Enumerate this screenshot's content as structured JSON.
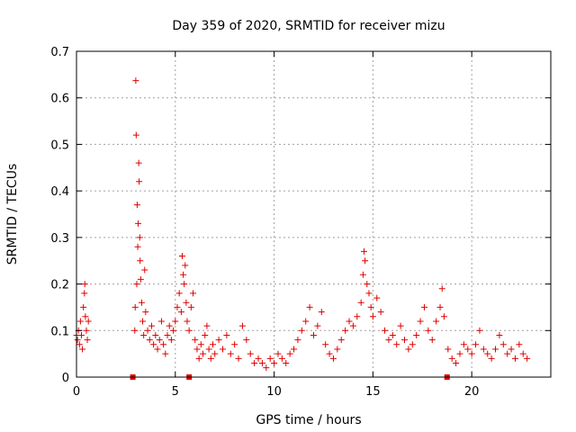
{
  "chart_data": {
    "type": "scatter",
    "title": "Day 359 of 2020, SRMTID for receiver mizu",
    "xlabel": "GPS time / hours",
    "ylabel": "SRMTID / TECUs",
    "xlim": [
      0,
      24
    ],
    "ylim": [
      0,
      0.7
    ],
    "xticks": [
      0,
      5,
      10,
      15,
      20
    ],
    "xtick_labels": [
      "0",
      "5",
      "10",
      "15",
      "20"
    ],
    "yticks": [
      0,
      0.1,
      0.2,
      0.3,
      0.4,
      0.5,
      0.6,
      0.7
    ],
    "ytick_labels": [
      "0",
      "0.1",
      "0.2",
      "0.3",
      "0.4",
      "0.5",
      "0.6",
      "0.7"
    ],
    "grid": true,
    "marker": "+",
    "colors": {
      "series": "#e00000",
      "grid": "#a0a0a0",
      "axis": "#000000"
    },
    "gap_markers_x": [
      2.85,
      5.7,
      18.75
    ],
    "series": [
      {
        "name": "SRMTID",
        "points": [
          [
            0.0,
            0.09
          ],
          [
            0.05,
            0.08
          ],
          [
            0.1,
            0.1
          ],
          [
            0.15,
            0.07
          ],
          [
            0.2,
            0.12
          ],
          [
            0.25,
            0.09
          ],
          [
            0.3,
            0.06
          ],
          [
            0.35,
            0.15
          ],
          [
            0.4,
            0.18
          ],
          [
            0.42,
            0.2
          ],
          [
            0.45,
            0.13
          ],
          [
            0.5,
            0.1
          ],
          [
            0.55,
            0.08
          ],
          [
            0.6,
            0.12
          ],
          [
            2.95,
            0.1
          ],
          [
            2.97,
            0.15
          ],
          [
            3.0,
            0.637
          ],
          [
            3.02,
            0.52
          ],
          [
            3.05,
            0.2
          ],
          [
            3.07,
            0.37
          ],
          [
            3.1,
            0.28
          ],
          [
            3.12,
            0.33
          ],
          [
            3.15,
            0.46
          ],
          [
            3.17,
            0.42
          ],
          [
            3.2,
            0.3
          ],
          [
            3.22,
            0.25
          ],
          [
            3.25,
            0.21
          ],
          [
            3.3,
            0.16
          ],
          [
            3.35,
            0.12
          ],
          [
            3.4,
            0.09
          ],
          [
            3.45,
            0.23
          ],
          [
            3.5,
            0.14
          ],
          [
            3.6,
            0.1
          ],
          [
            3.7,
            0.08
          ],
          [
            3.8,
            0.11
          ],
          [
            3.9,
            0.07
          ],
          [
            4.0,
            0.09
          ],
          [
            4.1,
            0.06
          ],
          [
            4.2,
            0.08
          ],
          [
            4.3,
            0.12
          ],
          [
            4.4,
            0.07
          ],
          [
            4.5,
            0.05
          ],
          [
            4.6,
            0.09
          ],
          [
            4.7,
            0.11
          ],
          [
            4.8,
            0.08
          ],
          [
            4.9,
            0.1
          ],
          [
            5.0,
            0.12
          ],
          [
            5.1,
            0.15
          ],
          [
            5.2,
            0.18
          ],
          [
            5.3,
            0.14
          ],
          [
            5.35,
            0.26
          ],
          [
            5.4,
            0.22
          ],
          [
            5.45,
            0.2
          ],
          [
            5.5,
            0.24
          ],
          [
            5.55,
            0.16
          ],
          [
            5.6,
            0.12
          ],
          [
            5.7,
            0.1
          ],
          [
            5.8,
            0.15
          ],
          [
            5.9,
            0.18
          ],
          [
            6.0,
            0.08
          ],
          [
            6.1,
            0.06
          ],
          [
            6.2,
            0.04
          ],
          [
            6.3,
            0.07
          ],
          [
            6.4,
            0.05
          ],
          [
            6.5,
            0.09
          ],
          [
            6.6,
            0.11
          ],
          [
            6.7,
            0.06
          ],
          [
            6.8,
            0.04
          ],
          [
            6.9,
            0.07
          ],
          [
            7.0,
            0.05
          ],
          [
            7.2,
            0.08
          ],
          [
            7.4,
            0.06
          ],
          [
            7.6,
            0.09
          ],
          [
            7.8,
            0.05
          ],
          [
            8.0,
            0.07
          ],
          [
            8.2,
            0.04
          ],
          [
            8.4,
            0.11
          ],
          [
            8.6,
            0.08
          ],
          [
            8.8,
            0.05
          ],
          [
            9.0,
            0.03
          ],
          [
            9.2,
            0.04
          ],
          [
            9.4,
            0.03
          ],
          [
            9.6,
            0.02
          ],
          [
            9.8,
            0.04
          ],
          [
            10.0,
            0.03
          ],
          [
            10.2,
            0.05
          ],
          [
            10.4,
            0.04
          ],
          [
            10.6,
            0.03
          ],
          [
            10.8,
            0.05
          ],
          [
            11.0,
            0.06
          ],
          [
            11.2,
            0.08
          ],
          [
            11.4,
            0.1
          ],
          [
            11.6,
            0.12
          ],
          [
            11.8,
            0.15
          ],
          [
            12.0,
            0.09
          ],
          [
            12.2,
            0.11
          ],
          [
            12.4,
            0.14
          ],
          [
            12.6,
            0.07
          ],
          [
            12.8,
            0.05
          ],
          [
            13.0,
            0.04
          ],
          [
            13.2,
            0.06
          ],
          [
            13.4,
            0.08
          ],
          [
            13.6,
            0.1
          ],
          [
            13.8,
            0.12
          ],
          [
            14.0,
            0.11
          ],
          [
            14.2,
            0.13
          ],
          [
            14.4,
            0.16
          ],
          [
            14.5,
            0.22
          ],
          [
            14.55,
            0.27
          ],
          [
            14.6,
            0.25
          ],
          [
            14.7,
            0.2
          ],
          [
            14.8,
            0.18
          ],
          [
            14.9,
            0.15
          ],
          [
            15.0,
            0.13
          ],
          [
            15.2,
            0.17
          ],
          [
            15.4,
            0.14
          ],
          [
            15.6,
            0.1
          ],
          [
            15.8,
            0.08
          ],
          [
            16.0,
            0.09
          ],
          [
            16.2,
            0.07
          ],
          [
            16.4,
            0.11
          ],
          [
            16.6,
            0.08
          ],
          [
            16.8,
            0.06
          ],
          [
            17.0,
            0.07
          ],
          [
            17.2,
            0.09
          ],
          [
            17.4,
            0.12
          ],
          [
            17.6,
            0.15
          ],
          [
            17.8,
            0.1
          ],
          [
            18.0,
            0.08
          ],
          [
            18.2,
            0.12
          ],
          [
            18.4,
            0.15
          ],
          [
            18.5,
            0.19
          ],
          [
            18.6,
            0.13
          ],
          [
            18.8,
            0.06
          ],
          [
            19.0,
            0.04
          ],
          [
            19.2,
            0.03
          ],
          [
            19.4,
            0.05
          ],
          [
            19.6,
            0.07
          ],
          [
            19.8,
            0.06
          ],
          [
            20.0,
            0.05
          ],
          [
            20.2,
            0.07
          ],
          [
            20.4,
            0.1
          ],
          [
            20.6,
            0.06
          ],
          [
            20.8,
            0.05
          ],
          [
            21.0,
            0.04
          ],
          [
            21.2,
            0.06
          ],
          [
            21.4,
            0.09
          ],
          [
            21.6,
            0.07
          ],
          [
            21.8,
            0.05
          ],
          [
            22.0,
            0.06
          ],
          [
            22.2,
            0.04
          ],
          [
            22.4,
            0.07
          ],
          [
            22.6,
            0.05
          ],
          [
            22.8,
            0.04
          ]
        ]
      }
    ]
  }
}
